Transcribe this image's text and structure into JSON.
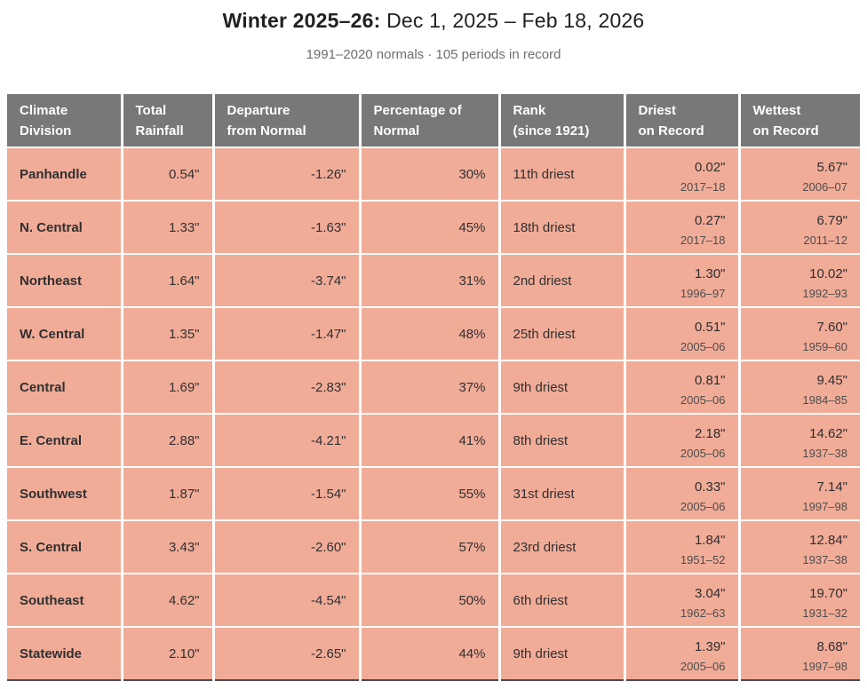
{
  "header": {
    "title_bold": "Winter 2025–26:",
    "title_rest": " Dec 1, 2025 – Feb 18, 2026",
    "subtitle": "1991–2020 normals · 105 periods in record"
  },
  "colors": {
    "header_bg": "#787878",
    "row_bg": "#f1ac98",
    "bottom_border": "#4a4a4a",
    "title_text": "#212121",
    "subtitle_text": "#6e6e6e",
    "year_text": "#4d4d4d"
  },
  "table": {
    "columns": [
      {
        "key": "climate-division",
        "line1": "Climate",
        "line2": "Division"
      },
      {
        "key": "total-rainfall",
        "line1": "Total",
        "line2": "Rainfall"
      },
      {
        "key": "departure-from-normal",
        "line1": "Departure",
        "line2": "from Normal"
      },
      {
        "key": "percentage-of-normal",
        "line1": "Percentage of",
        "line2": "Normal"
      },
      {
        "key": "rank-since-1921",
        "line1": "Rank",
        "line2": "(since 1921)"
      },
      {
        "key": "driest-on-record",
        "line1": "Driest",
        "line2": "on Record"
      },
      {
        "key": "wettest-on-record",
        "line1": "Wettest",
        "line2": "on Record"
      }
    ],
    "rows": [
      {
        "division": "Panhandle",
        "total": "0.54\"",
        "departure": "-1.26\"",
        "percent": "30%",
        "rank": "11th driest",
        "driest_value": "0.02\"",
        "driest_year": "2017–18",
        "wettest_value": "5.67\"",
        "wettest_year": "2006–07"
      },
      {
        "division": "N. Central",
        "total": "1.33\"",
        "departure": "-1.63\"",
        "percent": "45%",
        "rank": "18th driest",
        "driest_value": "0.27\"",
        "driest_year": "2017–18",
        "wettest_value": "6.79\"",
        "wettest_year": "2011–12"
      },
      {
        "division": "Northeast",
        "total": "1.64\"",
        "departure": "-3.74\"",
        "percent": "31%",
        "rank": "2nd driest",
        "driest_value": "1.30\"",
        "driest_year": "1996–97",
        "wettest_value": "10.02\"",
        "wettest_year": "1992–93"
      },
      {
        "division": "W. Central",
        "total": "1.35\"",
        "departure": "-1.47\"",
        "percent": "48%",
        "rank": "25th driest",
        "driest_value": "0.51\"",
        "driest_year": "2005–06",
        "wettest_value": "7.60\"",
        "wettest_year": "1959–60"
      },
      {
        "division": "Central",
        "total": "1.69\"",
        "departure": "-2.83\"",
        "percent": "37%",
        "rank": "9th driest",
        "driest_value": "0.81\"",
        "driest_year": "2005–06",
        "wettest_value": "9.45\"",
        "wettest_year": "1984–85"
      },
      {
        "division": "E. Central",
        "total": "2.88\"",
        "departure": "-4.21\"",
        "percent": "41%",
        "rank": "8th driest",
        "driest_value": "2.18\"",
        "driest_year": "2005–06",
        "wettest_value": "14.62\"",
        "wettest_year": "1937–38"
      },
      {
        "division": "Southwest",
        "total": "1.87\"",
        "departure": "-1.54\"",
        "percent": "55%",
        "rank": "31st driest",
        "driest_value": "0.33\"",
        "driest_year": "2005–06",
        "wettest_value": "7.14\"",
        "wettest_year": "1997–98"
      },
      {
        "division": "S. Central",
        "total": "3.43\"",
        "departure": "-2.60\"",
        "percent": "57%",
        "rank": "23rd driest",
        "driest_value": "1.84\"",
        "driest_year": "1951–52",
        "wettest_value": "12.84\"",
        "wettest_year": "1937–38"
      },
      {
        "division": "Southeast",
        "total": "4.62\"",
        "departure": "-4.54\"",
        "percent": "50%",
        "rank": "6th driest",
        "driest_value": "3.04\"",
        "driest_year": "1962–63",
        "wettest_value": "19.70\"",
        "wettest_year": "1931–32"
      },
      {
        "division": "Statewide",
        "total": "2.10\"",
        "departure": "-2.65\"",
        "percent": "44%",
        "rank": "9th driest",
        "driest_value": "1.39\"",
        "driest_year": "2005–06",
        "wettest_value": "8.68\"",
        "wettest_year": "1997–98"
      }
    ]
  },
  "chart_data": {
    "type": "table",
    "title": "Winter 2025–26: Dec 1, 2025 – Feb 18, 2026",
    "subtitle": "1991–2020 normals · 105 periods in record",
    "columns": [
      "Climate Division",
      "Total Rainfall",
      "Departure from Normal",
      "Percentage of Normal",
      "Rank (since 1921)",
      "Driest on Record",
      "Wettest on Record"
    ],
    "rows": [
      [
        "Panhandle",
        "0.54\"",
        "-1.26\"",
        "30%",
        "11th driest",
        "0.02\" (2017–18)",
        "5.67\" (2006–07)"
      ],
      [
        "N. Central",
        "1.33\"",
        "-1.63\"",
        "45%",
        "18th driest",
        "0.27\" (2017–18)",
        "6.79\" (2011–12)"
      ],
      [
        "Northeast",
        "1.64\"",
        "-3.74\"",
        "31%",
        "2nd driest",
        "1.30\" (1996–97)",
        "10.02\" (1992–93)"
      ],
      [
        "W. Central",
        "1.35\"",
        "-1.47\"",
        "48%",
        "25th driest",
        "0.51\" (2005–06)",
        "7.60\" (1959–60)"
      ],
      [
        "Central",
        "1.69\"",
        "-2.83\"",
        "37%",
        "9th driest",
        "0.81\" (2005–06)",
        "9.45\" (1984–85)"
      ],
      [
        "E. Central",
        "2.88\"",
        "-4.21\"",
        "41%",
        "8th driest",
        "2.18\" (2005–06)",
        "14.62\" (1937–38)"
      ],
      [
        "Southwest",
        "1.87\"",
        "-1.54\"",
        "55%",
        "31st driest",
        "0.33\" (2005–06)",
        "7.14\" (1997–98)"
      ],
      [
        "S. Central",
        "3.43\"",
        "-2.60\"",
        "57%",
        "23rd driest",
        "1.84\" (1951–52)",
        "12.84\" (1937–38)"
      ],
      [
        "Southeast",
        "4.62\"",
        "-4.54\"",
        "50%",
        "6th driest",
        "3.04\" (1962–63)",
        "19.70\" (1931–32)"
      ],
      [
        "Statewide",
        "2.10\"",
        "-2.65\"",
        "44%",
        "9th driest",
        "1.39\" (2005–06)",
        "8.68\" (1997–98)"
      ]
    ]
  }
}
